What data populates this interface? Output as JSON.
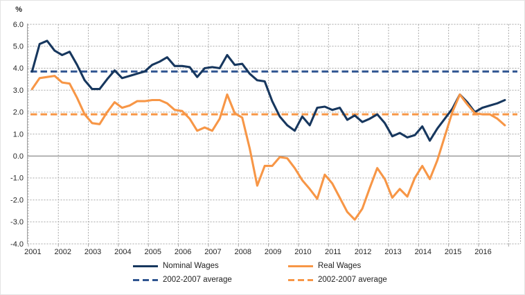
{
  "chart_data": {
    "type": "line",
    "unit_label": "%",
    "x_tick_labels": [
      "2001",
      "2002",
      "2003",
      "2004",
      "2005",
      "2006",
      "2007",
      "2008",
      "2009",
      "2010",
      "2011",
      "2012",
      "2013",
      "2014",
      "2015",
      "2016"
    ],
    "y_tick_labels": [
      "6.0",
      "5.0",
      "4.0",
      "3.0",
      "2.0",
      "1.0",
      "0.0",
      "-1.0",
      "-2.0",
      "-3.0",
      "-4.0"
    ],
    "ylim": [
      -4.0,
      6.0
    ],
    "points_per_year": 4,
    "grid": "dashed-gray",
    "legend_position": "bottom",
    "series": [
      {
        "name": "Nominal Wages",
        "kind": "line",
        "style": "solid",
        "color": "#17375E",
        "values": [
          3.85,
          5.1,
          5.25,
          4.8,
          4.6,
          4.75,
          4.15,
          3.45,
          3.05,
          3.05,
          3.5,
          3.9,
          3.55,
          3.65,
          3.75,
          3.85,
          4.15,
          4.3,
          4.5,
          4.1,
          4.1,
          4.05,
          3.6,
          4.0,
          4.05,
          4.0,
          4.6,
          4.15,
          4.2,
          3.75,
          3.45,
          3.4,
          2.5,
          1.8,
          1.4,
          1.15,
          1.8,
          1.4,
          2.2,
          2.25,
          2.1,
          2.2,
          1.65,
          1.85,
          1.55,
          1.7,
          1.9,
          1.5,
          0.9,
          1.05,
          0.85,
          0.95,
          1.35,
          0.7,
          1.25,
          1.7,
          2.15,
          2.8,
          2.45,
          2.0,
          2.2,
          2.3,
          2.4,
          2.55
        ]
      },
      {
        "name": "Real Wages",
        "kind": "line",
        "style": "solid",
        "color": "#F79646",
        "values": [
          3.05,
          3.55,
          3.6,
          3.65,
          3.35,
          3.3,
          2.65,
          1.9,
          1.5,
          1.45,
          2.0,
          2.45,
          2.2,
          2.3,
          2.5,
          2.5,
          2.55,
          2.55,
          2.4,
          2.1,
          2.05,
          1.7,
          1.15,
          1.3,
          1.15,
          1.7,
          2.8,
          1.95,
          1.75,
          0.35,
          -1.35,
          -0.45,
          -0.45,
          -0.05,
          -0.1,
          -0.55,
          -1.1,
          -1.5,
          -1.95,
          -0.85,
          -1.25,
          -1.9,
          -2.55,
          -2.9,
          -2.4,
          -1.45,
          -0.55,
          -1.05,
          -1.9,
          -1.5,
          -1.85,
          -1.0,
          -0.45,
          -1.05,
          -0.2,
          0.9,
          2.0,
          2.8,
          2.35,
          1.95,
          1.9,
          1.9,
          1.7,
          1.4
        ]
      },
      {
        "name": "2002-2007 average",
        "kind": "reference-line",
        "style": "dashed",
        "color": "#2E5490",
        "value": 3.85
      },
      {
        "name": "2002-2007 average",
        "kind": "reference-line",
        "style": "dashed",
        "color": "#F79646",
        "value": 1.9
      }
    ],
    "legend": [
      {
        "label": "Nominal Wages",
        "style": "solid",
        "color": "#17375E"
      },
      {
        "label": "Real Wages",
        "style": "solid",
        "color": "#F79646"
      },
      {
        "label": "2002-2007 average",
        "style": "dashed",
        "color": "#2E5490"
      },
      {
        "label": "2002-2007 average",
        "style": "dashed",
        "color": "#F79646"
      }
    ]
  }
}
